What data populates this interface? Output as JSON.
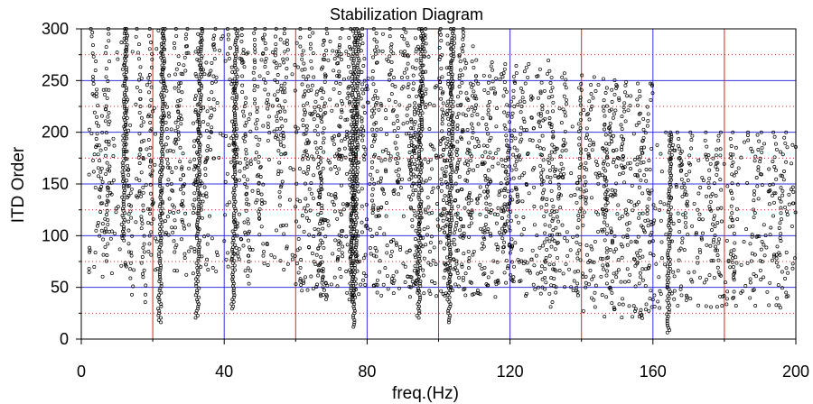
{
  "chart_data": {
    "type": "scatter",
    "title": "Stabilization Diagram",
    "xlabel": "freq.(Hz)",
    "ylabel": "ITD Order",
    "xlim": [
      0,
      200
    ],
    "ylim": [
      0,
      300
    ],
    "x_ticks": [
      "0",
      "40",
      "80",
      "120",
      "160",
      "200"
    ],
    "y_ticks": [
      "0",
      "50",
      "100",
      "150",
      "200",
      "250",
      "300"
    ],
    "grid": {
      "major_x_blue": [
        40,
        80,
        120,
        160
      ],
      "major_x_red": [
        20,
        60,
        100,
        140,
        180
      ],
      "major_y_blue": [
        50,
        100,
        150,
        200,
        250,
        300
      ],
      "minor_y_red_dotted": [
        25,
        75,
        125,
        175,
        225,
        275
      ]
    },
    "colors": {
      "points": "#000000",
      "blue_grid": "#3333dd",
      "red_grid": "#dd2222"
    },
    "marker": "open-circle",
    "stable_columns": [
      {
        "x": 12.5,
        "y_min": 95,
        "y_max": 300
      },
      {
        "x": 23.0,
        "y_min": 15,
        "y_max": 300
      },
      {
        "x": 33.5,
        "y_min": 20,
        "y_max": 300
      },
      {
        "x": 43.5,
        "y_min": 28,
        "y_max": 300
      },
      {
        "x": 76.5,
        "y_min": 35,
        "y_max": 300
      },
      {
        "x": 77.5,
        "y_min": 10,
        "y_max": 300
      },
      {
        "x": 95.5,
        "y_min": 20,
        "y_max": 300
      },
      {
        "x": 104.0,
        "y_min": 15,
        "y_max": 300
      },
      {
        "x": 165.0,
        "y_min": 5,
        "y_max": 200
      }
    ],
    "scatter_density": [
      {
        "x_from": 2,
        "x_to": 60,
        "y_min": 60,
        "y_max": 300,
        "count": 700
      },
      {
        "x_from": 60,
        "x_to": 110,
        "y_min": 40,
        "y_max": 300,
        "count": 1300
      },
      {
        "x_from": 110,
        "x_to": 140,
        "y_min": 40,
        "y_max": 270,
        "count": 600
      },
      {
        "x_from": 140,
        "x_to": 160,
        "y_min": 20,
        "y_max": 250,
        "count": 450
      },
      {
        "x_from": 160,
        "x_to": 200,
        "y_min": 30,
        "y_max": 200,
        "count": 500
      }
    ]
  }
}
